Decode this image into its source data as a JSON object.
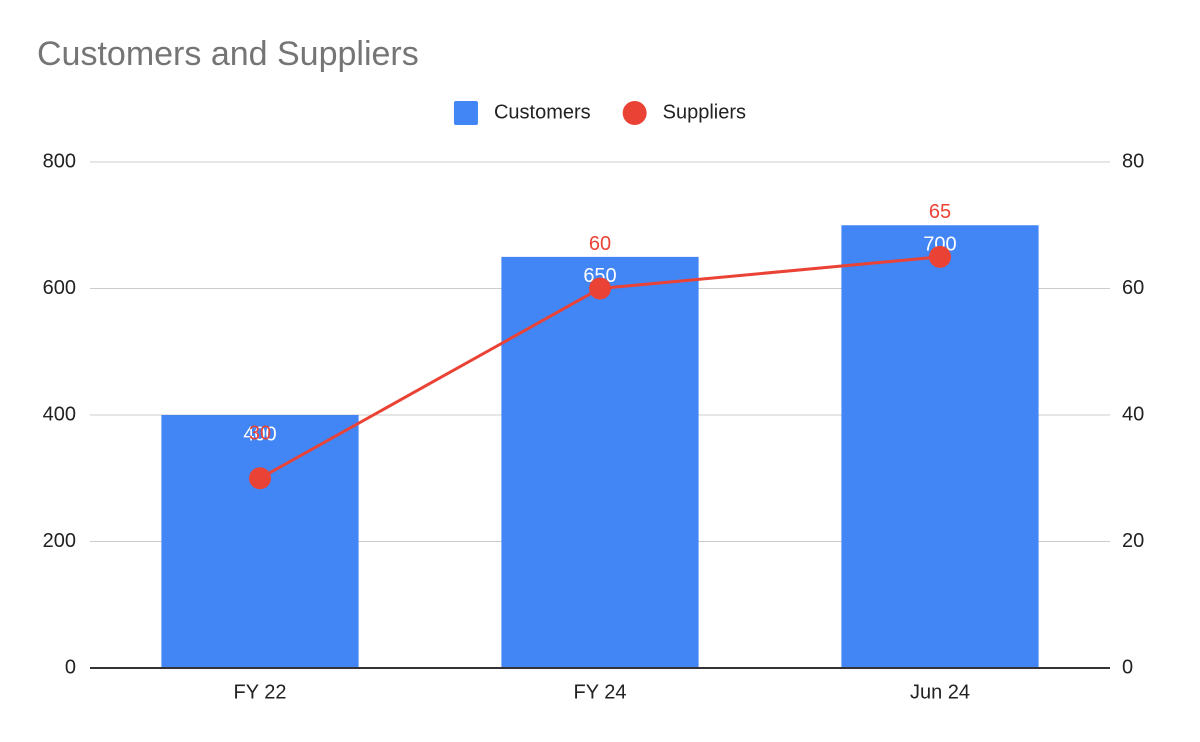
{
  "chart_data": {
    "type": "combo",
    "title": "Customers and Suppliers",
    "categories": [
      "FY 22",
      "FY 24",
      "Jun 24"
    ],
    "series": [
      {
        "name": "Customers",
        "type": "bar",
        "color": "#4285f4",
        "values": [
          400,
          650,
          700
        ]
      },
      {
        "name": "Suppliers",
        "type": "line",
        "axis": "y2",
        "color": "#ea4335",
        "values": [
          30,
          60,
          65
        ]
      }
    ],
    "ylim": [
      0,
      800
    ],
    "yticks": [
      0,
      200,
      400,
      600,
      800
    ],
    "y2lim": [
      0,
      80
    ],
    "y2ticks": [
      0,
      20,
      40,
      60,
      80
    ],
    "grid": true,
    "legend": "top"
  }
}
